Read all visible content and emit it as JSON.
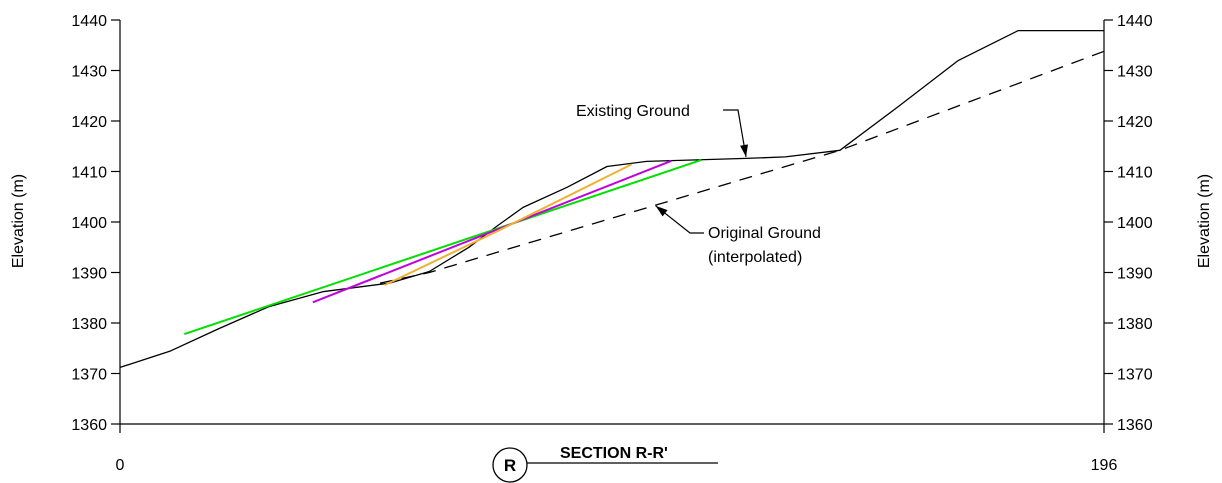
{
  "chart_data": {
    "type": "line",
    "xlim": [
      0,
      196
    ],
    "ylim": [
      1360,
      1440
    ],
    "x_ticks": [
      "0",
      "196"
    ],
    "y_ticks": [
      "1360",
      "1370",
      "1380",
      "1390",
      "1400",
      "1410",
      "1420",
      "1430",
      "1440"
    ],
    "ylabel_left": "Elevation (m)",
    "ylabel_right": "Elevation (m)",
    "grid": false,
    "series": [
      {
        "name": "Existing Ground",
        "color": "#000000",
        "dash": "solid",
        "points": [
          [
            0,
            1371.2
          ],
          [
            9.9,
            1374.4
          ],
          [
            19.7,
            1378.9
          ],
          [
            29.6,
            1383.2
          ],
          [
            40.4,
            1386.2
          ],
          [
            53.7,
            1387.9
          ],
          [
            61.6,
            1390.2
          ],
          [
            69.5,
            1395.0
          ],
          [
            75.4,
            1399.4
          ],
          [
            80.3,
            1402.9
          ],
          [
            89.1,
            1406.9
          ],
          [
            97.0,
            1411.0
          ],
          [
            104.9,
            1412.0
          ],
          [
            124.7,
            1412.6
          ],
          [
            132.5,
            1412.9
          ],
          [
            143.4,
            1414.2
          ],
          [
            155.2,
            1423.0
          ],
          [
            167.0,
            1432.0
          ],
          [
            178.9,
            1437.9
          ],
          [
            196.0,
            1437.9
          ]
        ]
      },
      {
        "name": "Original Ground",
        "color": "#000000",
        "dash": "dashed",
        "points": [
          [
            51.8,
            1387.9
          ],
          [
            61.6,
            1390.0
          ],
          [
            143.4,
            1414.2
          ],
          [
            196.0,
            1433.8
          ]
        ]
      },
      {
        "color": "#00e000",
        "dash": "solid",
        "points": [
          [
            12.8,
            1377.8
          ],
          [
            115.8,
            1412.3
          ]
        ]
      },
      {
        "color": "#c000e0",
        "dash": "solid",
        "points": [
          [
            38.4,
            1384.1
          ],
          [
            109.8,
            1412.1
          ]
        ]
      },
      {
        "color": "#f0b030",
        "dash": "solid",
        "points": [
          [
            52.7,
            1387.5
          ],
          [
            75.4,
            1398.3
          ],
          [
            101.9,
            1411.4
          ]
        ]
      }
    ],
    "annotations": [
      {
        "label": "Existing Ground",
        "target": [
          124.7,
          1412.5
        ]
      },
      {
        "label": "Original Ground",
        "line2": "(interpolated)",
        "target": [
          106.7,
          1403.6
        ]
      }
    ],
    "section": {
      "marker": "R",
      "title": "SECTION R-R'"
    }
  }
}
